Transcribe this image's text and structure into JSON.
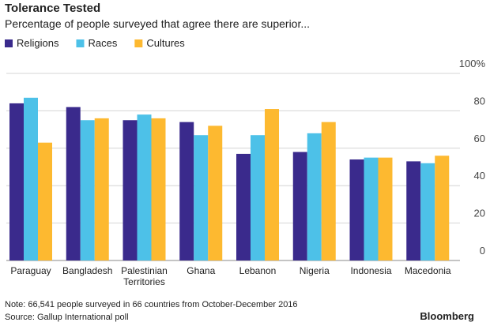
{
  "chart_data": {
    "type": "bar",
    "title": "Tolerance Tested",
    "subtitle": "Percentage of people surveyed that agree there are superior...",
    "categories": [
      "Paraguay",
      "Bangladesh",
      "Palestinian Territories",
      "Ghana",
      "Lebanon",
      "Nigeria",
      "Indonesia",
      "Macedonia"
    ],
    "series": [
      {
        "name": "Religions",
        "color": "#3a2a8c",
        "values": [
          84,
          82,
          75,
          74,
          57,
          58,
          54,
          53
        ]
      },
      {
        "name": "Races",
        "color": "#4dc1e8",
        "values": [
          87,
          75,
          78,
          67,
          67,
          68,
          55,
          52
        ]
      },
      {
        "name": "Cultures",
        "color": "#fdb930",
        "values": [
          63,
          76,
          76,
          72,
          81,
          74,
          55,
          56
        ]
      }
    ],
    "ylim": [
      0,
      100
    ],
    "yticks": [
      {
        "value": 100,
        "label": "100%"
      },
      80,
      60,
      40,
      20,
      0
    ],
    "grid": true,
    "notes": [
      "Note: 66,541 people surveyed in 66 countries from October-December 2016",
      "Source: Gallup International poll"
    ],
    "brand": "Bloomberg"
  }
}
